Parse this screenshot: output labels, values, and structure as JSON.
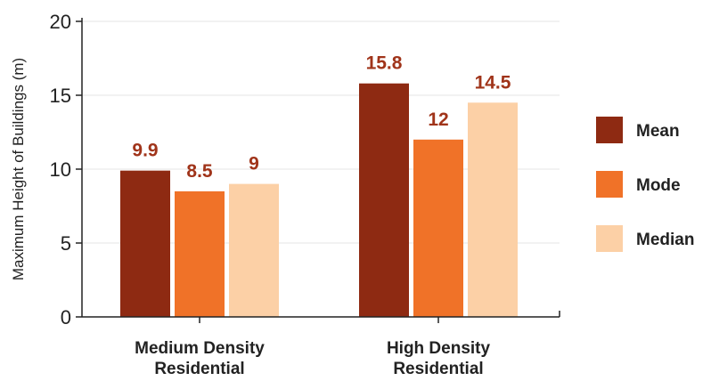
{
  "chart_data": {
    "type": "bar",
    "title": "",
    "xlabel": "",
    "ylabel": "Maximum Height of Buildings (m)",
    "ylim": [
      0,
      20
    ],
    "yticks": [
      0,
      5,
      10,
      15,
      20
    ],
    "grid": true,
    "legend_position": "right",
    "categories": [
      [
        "Medium Density",
        "Residential"
      ],
      [
        "High Density",
        "Residential"
      ]
    ],
    "series": [
      {
        "name": "Mean",
        "color": "#8e2a12",
        "values": [
          9.9,
          15.8
        ]
      },
      {
        "name": "Mode",
        "color": "#f07228",
        "values": [
          8.5,
          12
        ]
      },
      {
        "name": "Median",
        "color": "#fcd0a6",
        "values": [
          9,
          14.5
        ]
      }
    ]
  }
}
